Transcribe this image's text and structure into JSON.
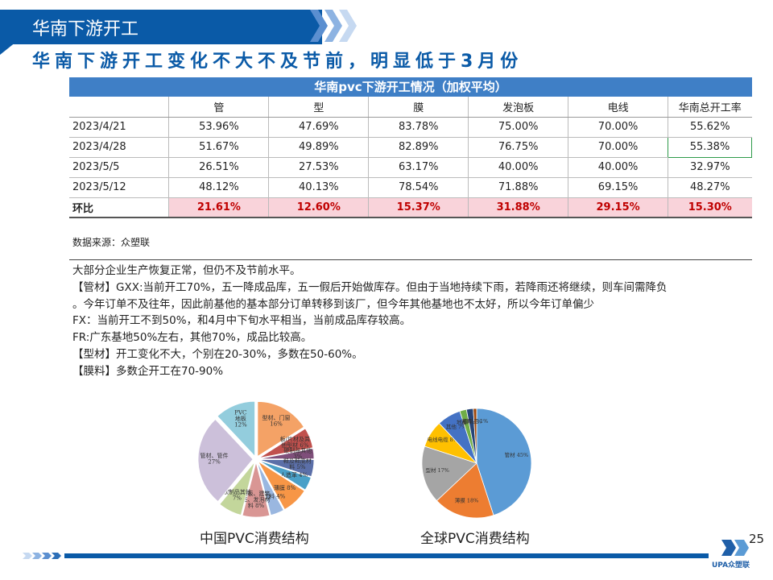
{
  "header": {
    "title": "华南下游开工"
  },
  "subtitle": "华南下游开工变化不大不及节前，明显低于3月份",
  "table": {
    "title": "华南pvc下游开工情况（加权平均）",
    "columns": [
      "",
      "管",
      "型",
      "膜",
      "发泡板",
      "电线",
      "华南总开工率"
    ],
    "rows": [
      [
        "2023/4/21",
        "53.96%",
        "47.69%",
        "83.78%",
        "75.00%",
        "70.00%",
        "55.62%"
      ],
      [
        "2023/4/28",
        "51.67%",
        "49.89%",
        "82.89%",
        "76.75%",
        "70.00%",
        "55.38%"
      ],
      [
        "2023/5/5",
        "26.51%",
        "27.53%",
        "63.17%",
        "40.00%",
        "40.00%",
        "32.97%"
      ],
      [
        "2023/5/12",
        "48.12%",
        "40.13%",
        "78.54%",
        "71.88%",
        "69.15%",
        "48.27%"
      ]
    ],
    "ratio_row": [
      "环比",
      "21.61%",
      "12.60%",
      "15.37%",
      "31.88%",
      "29.15%",
      "15.30%"
    ]
  },
  "source": "数据来源：众塑联",
  "notes": [
    "大部分企业生产恢复正常，但仍不及节前水平。",
    "【管材】GXX:当前开工70%，五一降成品库，五一假后开始做库存。但由于当地持续下雨，若降雨还将继续，则车间需降负",
    "。今年订单不及往年，因此前基他的基本部分订单转移到该厂，但今年其他基地也不太好，所以今年订单偏少",
    "FX：当前开工不到50%，和4月中下旬水平相当，当前成品库存较高。",
    "FR:广东基地50%左右，其他70%，成品比较高。",
    "【型材】开工变化不大，个别在20-30%，多数在50-60%。",
    "【膜料】多数企开工在70-90%"
  ],
  "chart_data": [
    {
      "type": "pie",
      "title": "中国PVC消费结构",
      "categories": [
        "型材、门窗异型材",
        "板/片材及其他型材",
        "硬制品其他",
        "鞋及鞋底材料",
        "人造革",
        "薄膜",
        "电缆料",
        "地板、建筑、发泡材料",
        "软制品其他",
        "管材、管件",
        "PVC地板"
      ],
      "labels": [
        "型材、门窗\n16%",
        "板/片材及其\n他型材 6%",
        "硬制品其他\n3%",
        "鞋及鞋底材\n料 5%",
        "人造革 4%",
        "薄膜 8%",
        "电缆料 4%",
        "地板、建筑\n革、发泡材\n料 8%",
        "软制品其他\n7%",
        "管材、管件\n27%",
        "PVC\n地板\n12%"
      ],
      "values": [
        16,
        6,
        3,
        5,
        4,
        8,
        4,
        8,
        7,
        27,
        12
      ],
      "colors": [
        "#f4a266",
        "#c0504d",
        "#7f4f7a",
        "#5b6fa8",
        "#4aa0c8",
        "#f79646",
        "#9ab7e0",
        "#d99694",
        "#c3d69b",
        "#ccc0da",
        "#93cddd"
      ]
    },
    {
      "type": "pie",
      "title": "全球PVC消费结构",
      "categories": [
        "管材",
        "薄膜",
        "型材",
        "电线电缆",
        "其他",
        "地板",
        "涂料",
        "瓶制品"
      ],
      "labels": [
        "管材 45%",
        "薄膜 18%",
        "型材 17%",
        "电线电缆 8%",
        "其他 7%",
        "地板 2%",
        "涂料 2%",
        "瓶制品 1%"
      ],
      "values": [
        45,
        18,
        17,
        8,
        7,
        2,
        2,
        1
      ],
      "colors": [
        "#5b9bd5",
        "#ed7d31",
        "#a5a5a5",
        "#ffc000",
        "#4472c4",
        "#70ad47",
        "#264478",
        "#9e480e"
      ]
    }
  ],
  "page_number": "25",
  "logo": {
    "text": "UPA众塑联"
  }
}
